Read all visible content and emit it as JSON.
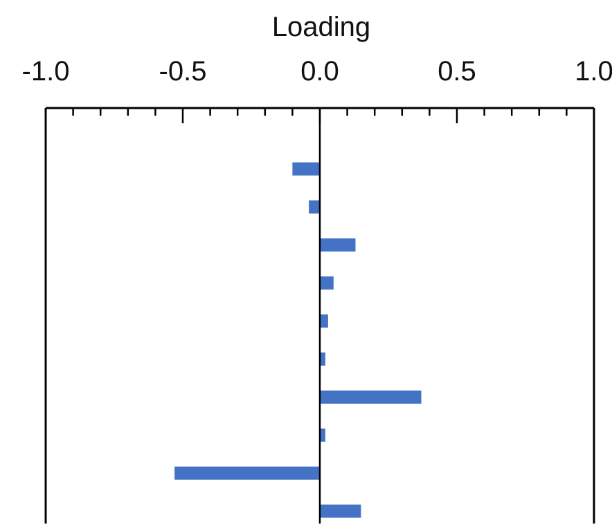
{
  "chart_data": {
    "type": "bar",
    "orientation": "horizontal",
    "title": "",
    "xlabel": "Loading",
    "ylabel": "",
    "xlim": [
      -1.0,
      1.0
    ],
    "x_ticks": [
      "-1.0",
      "-0.5",
      "0.0",
      "0.5",
      "1.0"
    ],
    "x_minor_step": 0.1,
    "x_axis_position": "top",
    "grid": false,
    "legend": "none",
    "bar_color": "#4472C4",
    "values": [
      -0.1,
      -0.04,
      0.13,
      0.05,
      0.03,
      0.02,
      0.37,
      0.02,
      -0.53,
      0.15
    ]
  }
}
